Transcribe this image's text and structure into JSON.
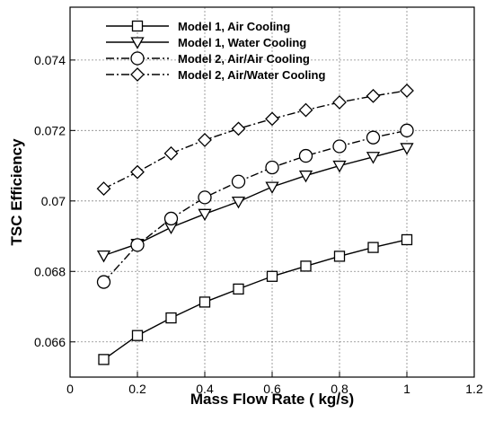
{
  "chart_data": {
    "type": "line",
    "title": "",
    "xlabel": "Mass Flow Rate ( kg/s)",
    "ylabel": "TSC Efficiency",
    "xlim": [
      0,
      1.2
    ],
    "ylim": [
      0.065,
      0.0755
    ],
    "x_ticks": [
      0,
      0.2,
      0.4,
      0.6,
      0.8,
      1,
      1.2
    ],
    "x_tick_labels": [
      "0",
      "0.2",
      "0.4",
      "0.6",
      "0.8",
      "1",
      "1.2"
    ],
    "y_ticks": [
      0.066,
      0.068,
      0.07,
      0.072,
      0.074
    ],
    "y_tick_labels": [
      "0.066",
      "0.068",
      "0.07",
      "0.072",
      "0.074"
    ],
    "grid": true,
    "legend_position": "top-left",
    "x": [
      0.1,
      0.2,
      0.3,
      0.4,
      0.5,
      0.6,
      0.7,
      0.8,
      0.9,
      1.0
    ],
    "series": [
      {
        "name": "Model 1, Air Cooling",
        "marker": "square",
        "line_style": "solid",
        "values": [
          0.0655,
          0.06618,
          0.06668,
          0.06713,
          0.0675,
          0.06786,
          0.06815,
          0.06843,
          0.06868,
          0.0689
        ]
      },
      {
        "name": "Model 1, Water Cooling",
        "marker": "triangle-down",
        "line_style": "solid",
        "values": [
          0.06845,
          0.06878,
          0.06925,
          0.06963,
          0.06998,
          0.0704,
          0.07072,
          0.071,
          0.07125,
          0.0715
        ]
      },
      {
        "name": "Model 2, Air/Air Cooling",
        "marker": "circle",
        "line_style": "dash-dot",
        "values": [
          0.0677,
          0.06875,
          0.0695,
          0.0701,
          0.07055,
          0.07095,
          0.07128,
          0.07155,
          0.0718,
          0.072
        ]
      },
      {
        "name": "Model 2, Air/Water Cooling",
        "marker": "diamond",
        "line_style": "dash-dot",
        "values": [
          0.07035,
          0.07082,
          0.07135,
          0.07173,
          0.07205,
          0.07233,
          0.07258,
          0.0728,
          0.07298,
          0.07313
        ]
      }
    ]
  }
}
